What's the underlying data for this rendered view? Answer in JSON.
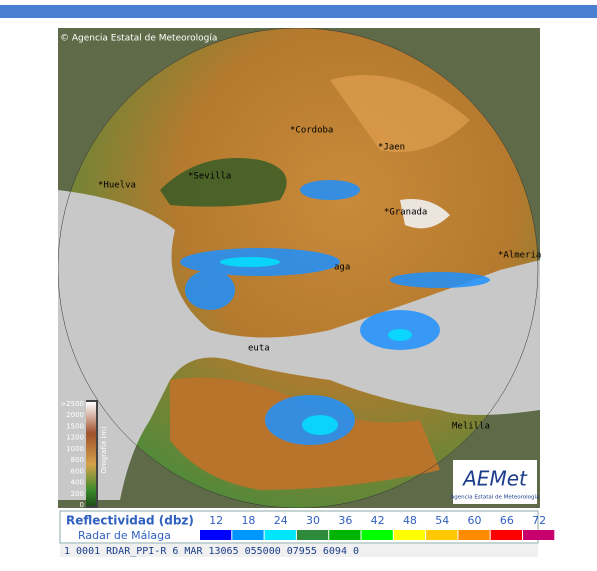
{
  "header": {
    "credit": "© Agencia Estatal de Meteorología"
  },
  "cities": [
    {
      "label": "*Cordoba"
    },
    {
      "label": "*Jaen"
    },
    {
      "label": "*Huelva"
    },
    {
      "label": "*Sevilla"
    },
    {
      "label": "*Granada"
    },
    {
      "label": "*Almeria"
    },
    {
      "label": "aga"
    },
    {
      "label": "euta"
    },
    {
      "label": "Melilla"
    }
  ],
  "orography": {
    "title": "Orografía (m)",
    "labels": [
      ">2500",
      "2000",
      "1500",
      "1200",
      "1000",
      "800",
      "600",
      "400",
      "200",
      "0"
    ]
  },
  "logo": {
    "name": "AEMet",
    "subtitle": "Agencia Estatal de Meteorología"
  },
  "legend": {
    "title": "Reflectividad (dbz)",
    "radar": "Radar de Málaga",
    "scale": [
      {
        "label": "12",
        "color": "#0000ff"
      },
      {
        "label": "18",
        "color": "#0096ff"
      },
      {
        "label": "24",
        "color": "#00e6ff"
      },
      {
        "label": "30",
        "color": "#2e8b3c"
      },
      {
        "label": "36",
        "color": "#00b400"
      },
      {
        "label": "42",
        "color": "#00ff00"
      },
      {
        "label": "48",
        "color": "#ffff00"
      },
      {
        "label": "54",
        "color": "#ffc800"
      },
      {
        "label": "60",
        "color": "#ff8c00"
      },
      {
        "label": "66",
        "color": "#ff0000"
      },
      {
        "label": "72",
        "color": "#c8006e"
      }
    ]
  },
  "status": "1 0001 RDAR_PPI-R   6 MAR 13065 055000 07955 6094 0"
}
